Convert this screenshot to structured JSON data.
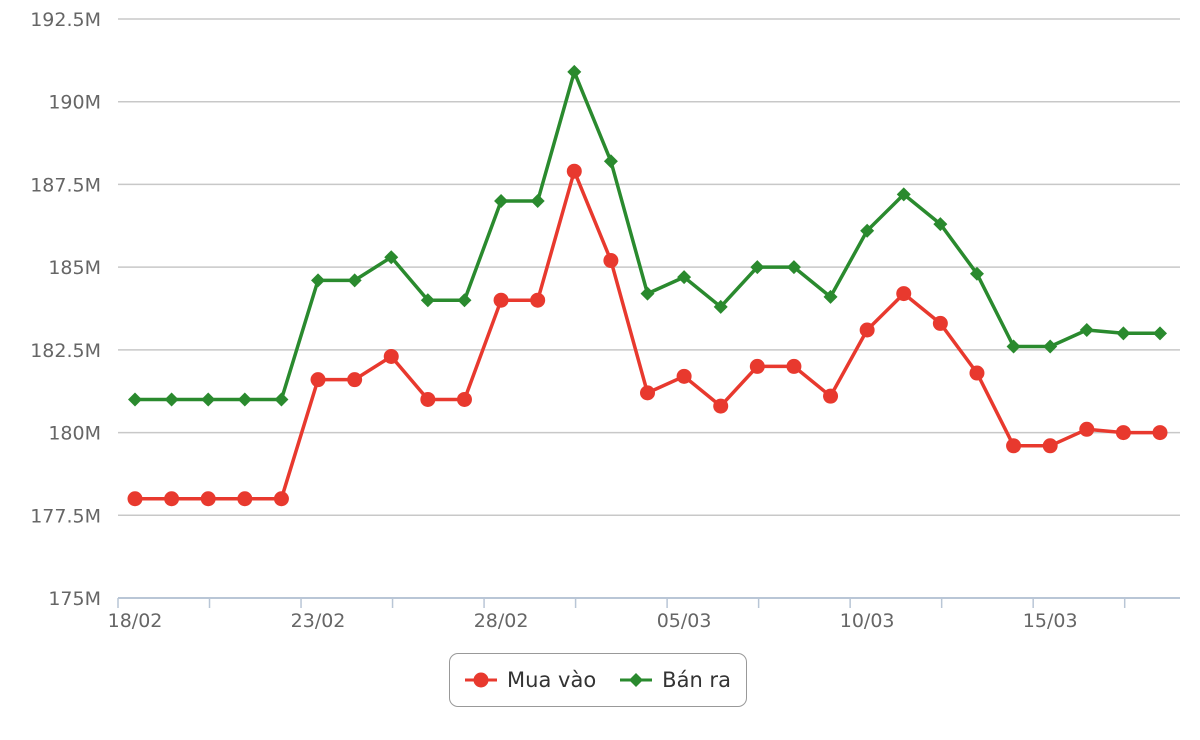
{
  "chart_data": {
    "type": "line",
    "x": [
      "18/02",
      "19/02",
      "20/02",
      "21/02",
      "22/02",
      "23/02",
      "24/02",
      "25/02",
      "26/02",
      "27/02",
      "28/02",
      "01/03",
      "02/03",
      "03/03",
      "04/03",
      "05/03",
      "06/03",
      "07/03",
      "08/03",
      "09/03",
      "10/03",
      "11/03",
      "12/03",
      "13/03",
      "14/03",
      "15/03",
      "16/03",
      "17/03",
      "18/03"
    ],
    "x_ticks": [
      "18/02",
      "23/02",
      "28/02",
      "05/03",
      "10/03",
      "15/03"
    ],
    "y_ticks": [
      "175M",
      "177.5M",
      "180M",
      "182.5M",
      "185M",
      "187.5M",
      "190M",
      "192.5M"
    ],
    "ylim": [
      175,
      192.5
    ],
    "y_unit": "M",
    "grid": true,
    "legend_position": "bottom-center",
    "series": [
      {
        "name": "Mua vào",
        "color": "#e8392e",
        "marker": "circle",
        "values": [
          178,
          178,
          178,
          178,
          178,
          181.6,
          181.6,
          182.3,
          181,
          181,
          184,
          184,
          187.9,
          185.2,
          181.2,
          181.7,
          180.8,
          182,
          182,
          181.1,
          183.1,
          184.2,
          183.3,
          181.8,
          179.6,
          179.6,
          180.1,
          180,
          180
        ]
      },
      {
        "name": "Bán ra",
        "color": "#2a8a2e",
        "marker": "diamond",
        "values": [
          181,
          181,
          181,
          181,
          181,
          184.6,
          184.6,
          185.3,
          184,
          184,
          187,
          187,
          190.9,
          188.2,
          184.2,
          184.7,
          183.8,
          185,
          185,
          184.1,
          186.1,
          187.2,
          186.3,
          184.8,
          182.6,
          182.6,
          183.1,
          183,
          183
        ]
      }
    ]
  }
}
